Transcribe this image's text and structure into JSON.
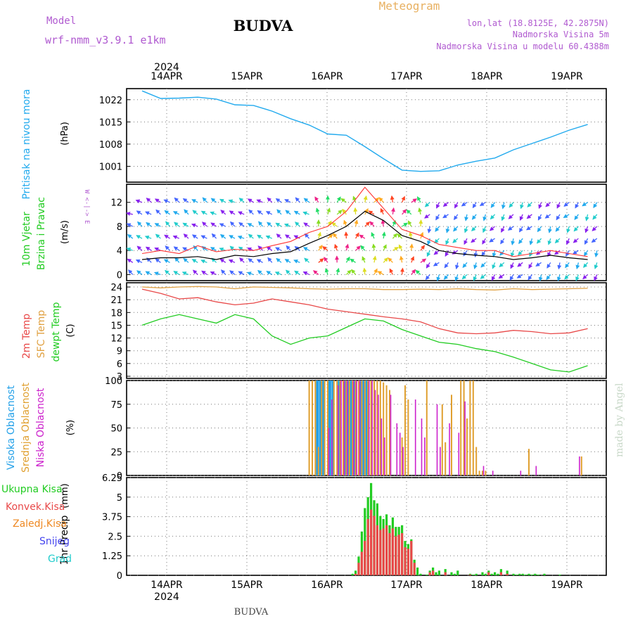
{
  "header": {
    "model_label": "Model",
    "model_name": "wrf-nmm_v3.9.1 e1km",
    "title": "BUDVA",
    "meteogram_label": "Meteogram",
    "lonlat": "lon,lat (18.8125E, 42.2875N)",
    "elev": "Nadmorska Visina 5m",
    "model_elev": "Nadmorska Visina u modelu 60.4388m",
    "year_top": "2024",
    "year_bottom": "2024",
    "footer": "BUDVA",
    "watermark": "made by Angel"
  },
  "colors": {
    "pressure": "#22aaee",
    "temp2m": "#e84848",
    "sfc": "#e0a040",
    "dewpt": "#22cc22",
    "high_cloud": "#22a0e8",
    "mid_cloud": "#e0a030",
    "low_cloud": "#cc22cc",
    "total_precip": "#22cc22",
    "conv_precip": "#e84848",
    "frozen": "#ee8822",
    "snow": "#4444ee",
    "grad": "#22cccc",
    "wind_speed": "#000000",
    "gust": "#ff3333"
  },
  "days": [
    "14APR",
    "15APR",
    "16APR",
    "17APR",
    "18APR",
    "19APR"
  ],
  "chart_data": [
    {
      "type": "line",
      "panel": "pressure",
      "ylabel_1": "Pritisak na nivou mora",
      "ylabel_2": "(hPa)",
      "yticks": [
        1001,
        1008,
        1015,
        1022
      ],
      "ylim": [
        996,
        1025.5
      ],
      "x_hours": [
        0,
        6,
        12,
        18,
        24,
        30,
        36,
        42,
        48,
        54,
        60,
        66,
        72,
        78,
        84,
        90,
        96,
        102,
        108,
        114,
        120,
        126,
        132,
        138,
        144
      ],
      "values": [
        1024.8,
        1022.4,
        1022.5,
        1022.8,
        1022.2,
        1020.4,
        1020.2,
        1018.4,
        1016,
        1014,
        1011.2,
        1010.8,
        1007.2,
        1003.4,
        999.8,
        999.4,
        999.6,
        1001.4,
        1002.6,
        1003.6,
        1006.2,
        1008.2,
        1010.2,
        1012.4,
        1014.2
      ]
    },
    {
      "type": "line",
      "panel": "wind",
      "ylabel_1": "10m Vjetar",
      "ylabel_2": "Brzina i Pravac",
      "ylabel_3": "(m/s)",
      "compass": "W <-|-> E",
      "yticks": [
        0,
        4,
        8,
        12
      ],
      "ylim": [
        -1,
        15
      ],
      "x_hours": [
        0,
        6,
        12,
        18,
        24,
        30,
        36,
        42,
        48,
        54,
        60,
        66,
        72,
        78,
        84,
        90,
        96,
        102,
        108,
        114,
        120,
        126,
        132,
        138,
        144
      ],
      "series": [
        {
          "name": "speed",
          "values": [
            2.5,
            2.8,
            2.8,
            3.0,
            2.5,
            3.2,
            3.0,
            3.5,
            3.8,
            5.2,
            6.5,
            8.0,
            10.5,
            9.0,
            6.5,
            5.5,
            4.0,
            3.5,
            3.2,
            3.0,
            2.5,
            2.8,
            3.2,
            2.8,
            2.5
          ]
        },
        {
          "name": "gust",
          "values": [
            3.5,
            4.0,
            3.5,
            4.8,
            3.8,
            4.2,
            4.0,
            4.8,
            5.5,
            7.0,
            8.0,
            10.5,
            14.5,
            11.0,
            7.5,
            6.5,
            5.0,
            4.5,
            4.0,
            4.0,
            3.0,
            3.5,
            4.0,
            3.5,
            3.0
          ]
        }
      ]
    },
    {
      "type": "line",
      "panel": "temperature",
      "ylabel_1": "2m Temp",
      "ylabel_2": "SFC Temp",
      "ylabel_3": "dewpt Temp",
      "ylabel_4": "(C)",
      "yticks": [
        3,
        6,
        9,
        12,
        15,
        18,
        21,
        24
      ],
      "ylim": [
        2.5,
        25
      ],
      "x_hours": [
        0,
        6,
        12,
        18,
        24,
        30,
        36,
        42,
        48,
        54,
        60,
        66,
        72,
        78,
        84,
        90,
        96,
        102,
        108,
        114,
        120,
        126,
        132,
        138,
        144
      ],
      "series": [
        {
          "name": "2m Temp",
          "values": [
            23.5,
            22.5,
            21.2,
            21.5,
            20.5,
            19.8,
            20.2,
            21.2,
            20.5,
            19.8,
            18.8,
            18.2,
            17.6,
            17.0,
            16.5,
            15.8,
            14.2,
            13.2,
            13.0,
            13.2,
            13.8,
            13.5,
            13.0,
            13.2,
            14.2
          ]
        },
        {
          "name": "SFC Temp",
          "values": [
            24,
            23.8,
            24,
            24.1,
            24,
            23.6,
            24,
            23.9,
            23.8,
            23.6,
            23.5,
            23.6,
            23.6,
            23.4,
            23.4,
            23.5,
            23.4,
            23.6,
            23.4,
            23.3,
            23.6,
            23.4,
            23.5,
            23.6,
            23.7
          ]
        },
        {
          "name": "dewpt Temp",
          "values": [
            15,
            16.5,
            17.5,
            16.5,
            15.5,
            17.5,
            16.5,
            12.5,
            10.5,
            12.0,
            12.5,
            14.5,
            16.5,
            16.0,
            14.0,
            12.5,
            11.0,
            10.5,
            9.5,
            8.8,
            7.5,
            6.0,
            4.5,
            4.0,
            5.5
          ]
        }
      ]
    },
    {
      "type": "bar",
      "panel": "clouds",
      "ylabel_1": "Visoka Oblacnost",
      "ylabel_2": "Srednja Oblacnost",
      "ylabel_3": "Niska Oblacnost",
      "ylabel_4": "(%)",
      "yticks": [
        0,
        25,
        50,
        75,
        100
      ],
      "ylim": [
        0,
        100
      ],
      "series": [
        {
          "name": "Visoka Oblacnost",
          "x_hours": [
            57,
            58,
            59,
            61,
            62,
            64,
            66,
            67,
            68,
            69,
            71,
            72,
            73
          ],
          "values": [
            100,
            100,
            100,
            100,
            100,
            100,
            100,
            100,
            100,
            100,
            100,
            100,
            100
          ]
        },
        {
          "name": "Srednja Oblacnost",
          "x_hours": [
            54,
            55,
            56,
            57,
            58,
            59,
            60,
            62,
            63,
            64,
            65,
            66,
            67,
            68,
            69,
            70,
            71,
            72,
            73,
            74,
            75,
            76,
            77,
            78,
            79,
            80,
            84,
            85,
            86,
            92,
            97,
            98,
            100,
            103,
            104,
            105,
            106,
            107,
            108,
            109,
            110,
            111,
            125,
            142
          ],
          "values": [
            100,
            100,
            100,
            30,
            100,
            100,
            100,
            100,
            100,
            100,
            100,
            100,
            100,
            100,
            100,
            100,
            100,
            100,
            100,
            100,
            100,
            100,
            100,
            98,
            95,
            90,
            40,
            95,
            80,
            100,
            75,
            35,
            85,
            100,
            100,
            60,
            100,
            100,
            30,
            5,
            5,
            5,
            28,
            20
          ]
        },
        {
          "name": "Niska Oblacnost",
          "x_hours": [
            60,
            61,
            63,
            64,
            65,
            66,
            68,
            69,
            70,
            73,
            74,
            75,
            76,
            77,
            78,
            80,
            82,
            83,
            84,
            88,
            90,
            91,
            95,
            96,
            99,
            102,
            104,
            110,
            113,
            122,
            127,
            141
          ],
          "values": [
            50,
            80,
            95,
            100,
            100,
            100,
            100,
            100,
            100,
            100,
            100,
            90,
            85,
            60,
            40,
            85,
            55,
            45,
            30,
            80,
            60,
            40,
            75,
            30,
            55,
            45,
            78,
            10,
            5,
            5,
            10,
            20
          ]
        }
      ]
    },
    {
      "type": "bar",
      "panel": "precipitation",
      "ylabel_1": "1hr Precip",
      "ylabel_2": "(mm)",
      "legend": [
        "Ukupna Kisa",
        "Konvek.Kisa",
        "Zaledj.Kisa",
        "Snijeg",
        "Grad"
      ],
      "yticks": [
        0,
        1.25,
        2.5,
        3.75,
        5,
        6.25
      ],
      "ylim": [
        0,
        6.25
      ],
      "series": [
        {
          "name": "Ukupna Kisa",
          "x_hours": [
            68,
            69,
            70,
            71,
            72,
            73,
            74,
            75,
            76,
            77,
            78,
            79,
            80,
            81,
            82,
            83,
            84,
            85,
            86,
            87,
            88,
            89,
            90,
            92,
            93,
            94,
            95,
            96,
            98,
            100,
            101,
            102,
            106,
            107,
            108,
            110,
            111,
            112,
            113,
            114,
            115,
            116,
            118,
            120,
            121,
            122,
            123,
            124,
            125,
            126,
            127,
            128,
            130,
            135
          ],
          "values": [
            0.1,
            0.3,
            1.2,
            2.8,
            4.3,
            5.0,
            5.9,
            4.8,
            4.6,
            3.8,
            3.6,
            3.9,
            3.2,
            3.7,
            3.1,
            3.1,
            3.2,
            2.2,
            2.0,
            2.3,
            1.0,
            0.5,
            0.1,
            0.05,
            0.3,
            0.5,
            0.2,
            0.3,
            0.4,
            0.2,
            0.1,
            0.3,
            0.1,
            0.05,
            0.1,
            0.2,
            0.1,
            0.3,
            0.1,
            0.2,
            0.1,
            0.4,
            0.3,
            0.1,
            0.05,
            0.1,
            0.1,
            0.05,
            0.1,
            0.05,
            0.1,
            0.05,
            0.1,
            0.05
          ]
        },
        {
          "name": "Konvek.Kisa",
          "x_hours": [
            69,
            70,
            71,
            72,
            73,
            74,
            75,
            76,
            77,
            78,
            79,
            80,
            81,
            82,
            83,
            84,
            85,
            86,
            87,
            88,
            93,
            94,
            98,
            106,
            112,
            116,
            118
          ],
          "values": [
            0.1,
            0.8,
            1.5,
            2.2,
            3.6,
            4.2,
            3.8,
            3.2,
            2.9,
            3.0,
            3.2,
            2.7,
            3.0,
            2.5,
            2.6,
            2.7,
            1.8,
            1.7,
            2.2,
            0.8,
            0.2,
            0.3,
            0.2,
            0.05,
            0.2,
            0.2,
            0.1
          ]
        }
      ]
    }
  ]
}
